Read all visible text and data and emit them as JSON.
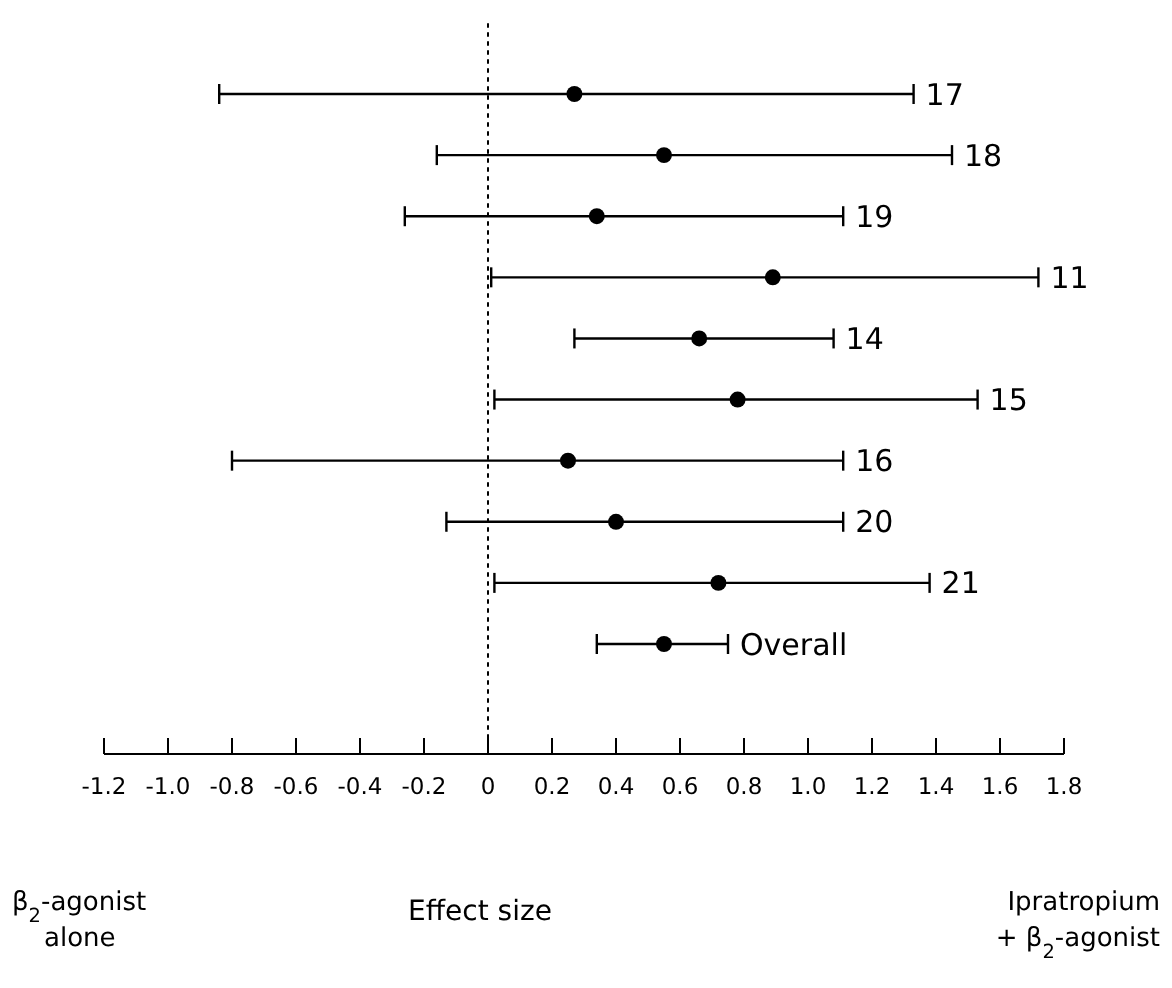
{
  "chart_data": {
    "type": "scatter",
    "orientation": "horizontal",
    "xlabel": "Effect size",
    "categories": [
      "17",
      "18",
      "19",
      "11",
      "14",
      "15",
      "16",
      "20",
      "21",
      "Overall"
    ],
    "values": [
      0.27,
      0.55,
      0.34,
      0.89,
      0.66,
      0.78,
      0.25,
      0.4,
      0.72,
      0.55
    ],
    "errors": [
      [
        -0.84,
        1.33
      ],
      [
        -0.16,
        1.45
      ],
      [
        -0.26,
        1.11
      ],
      [
        0.01,
        1.72
      ],
      [
        0.27,
        1.08
      ],
      [
        0.02,
        1.53
      ],
      [
        -0.8,
        1.11
      ],
      [
        -0.13,
        1.11
      ],
      [
        0.02,
        1.38
      ],
      [
        0.34,
        0.75
      ]
    ],
    "color": "#000000",
    "marker": "circle",
    "xlim": [
      -1.2,
      1.8
    ],
    "xticks": [
      {
        "value": -1.2,
        "label": "-1.2"
      },
      {
        "value": -1.0,
        "label": "-1.0"
      },
      {
        "value": -0.8,
        "label": "-0.8"
      },
      {
        "value": -0.6,
        "label": "-0.6"
      },
      {
        "value": -0.4,
        "label": "-0.4"
      },
      {
        "value": -0.2,
        "label": "-0.2"
      },
      0,
      0.2,
      0.4,
      0.6,
      {
        "value": 0.8,
        "label": "0.8"
      },
      {
        "value": 1.0,
        "label": "1.0"
      },
      {
        "value": 1.2,
        "label": "1.2"
      },
      {
        "value": 1.4,
        "label": "1.4"
      },
      {
        "value": 1.6,
        "label": "1.6"
      },
      {
        "value": 1.8,
        "label": "1.8"
      }
    ],
    "ref_lines": [
      {
        "axis": "x",
        "value": 0,
        "line_style": "dotted"
      }
    ],
    "annotations": [
      "β$_{2}$-agonist alone",
      "Ipratropium + β$_{2}$-agonist"
    ]
  }
}
